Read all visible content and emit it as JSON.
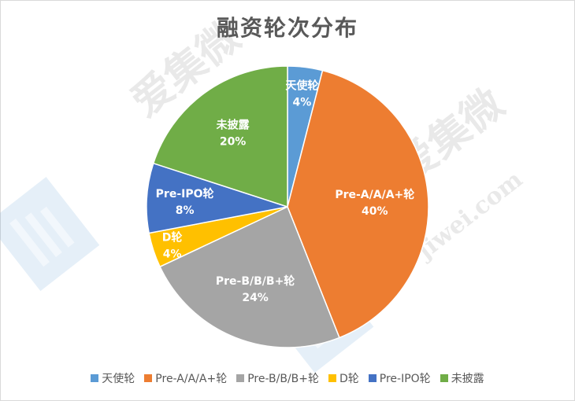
{
  "chart_data": {
    "type": "pie",
    "title": "融资轮次分布",
    "start_angle_deg": 90,
    "direction": "clockwise",
    "legend_position": "bottom",
    "slices": [
      {
        "label": "天使轮",
        "value": 4,
        "display": "4%",
        "color": "#5b9bd5"
      },
      {
        "label": "Pre-A/A/A+轮",
        "value": 40,
        "display": "40%",
        "color": "#ed7d31"
      },
      {
        "label": "Pre-B/B/B+轮",
        "value": 24,
        "display": "24%",
        "color": "#a5a5a5"
      },
      {
        "label": "D轮",
        "value": 4,
        "display": "4%",
        "color": "#ffc000"
      },
      {
        "label": "Pre-IPO轮",
        "value": 8,
        "display": "8%",
        "color": "#4472c4"
      },
      {
        "label": "未披露",
        "value": 20,
        "display": "20%",
        "color": "#70ad47"
      }
    ]
  },
  "watermark": {
    "text": "爱集微",
    "url": "jiwei.com",
    "logo_color": "#5b9bd5"
  }
}
